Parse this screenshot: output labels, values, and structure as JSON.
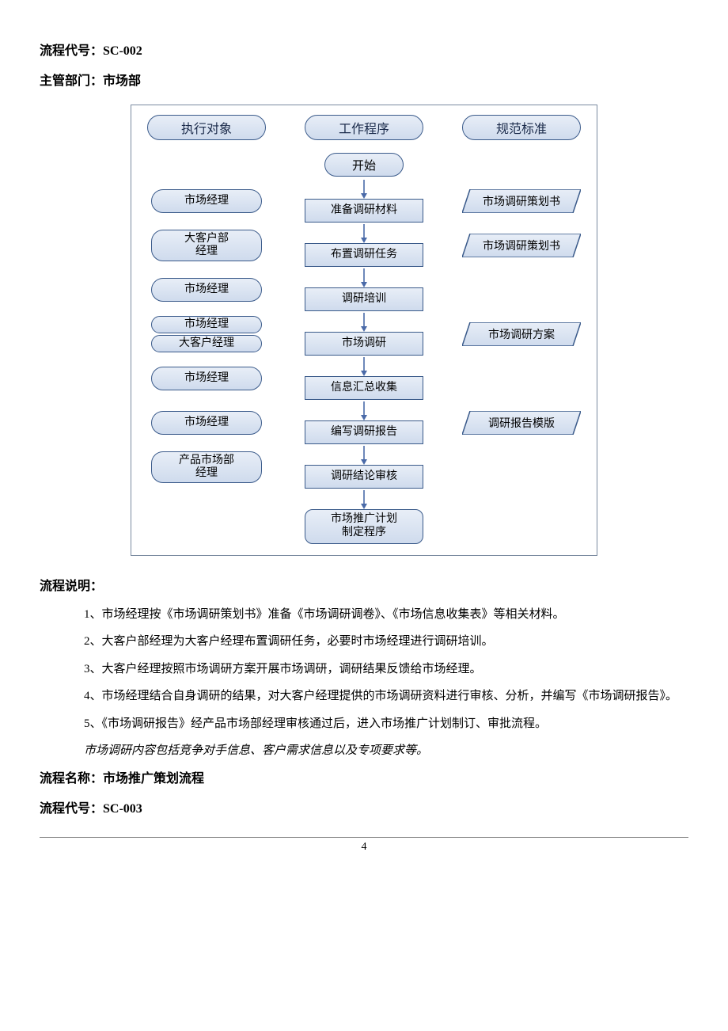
{
  "header": {
    "code_label": "流程代号：",
    "code_value": "SC-002",
    "dept_label": "主管部门：",
    "dept_value": "市场部"
  },
  "flowchart": {
    "type": "flowchart",
    "background_color": "#ffffff",
    "border_color": "#7a8aa0",
    "node_stroke": "#3a5a8a",
    "node_fill_top": "#e8eef7",
    "node_fill_bottom": "#cfdbed",
    "arrow_color": "#4a6aa8",
    "font_family": "SimSun",
    "font_size_header": 16,
    "font_size_node": 14,
    "column_headers": [
      "执行对象",
      "工作程序",
      "规范标准"
    ],
    "start_label": "开始",
    "end_label": "市场推广计划\n制定程序",
    "steps": [
      {
        "actors": [
          "市场经理"
        ],
        "process": "准备调研材料",
        "standard": "市场调研策划书"
      },
      {
        "actors": [
          "大客户部\n经理"
        ],
        "process": "布置调研任务",
        "standard": "市场调研策划书"
      },
      {
        "actors": [
          "市场经理"
        ],
        "process": "调研培训",
        "standard": null
      },
      {
        "actors": [
          "市场经理",
          "大客户经理"
        ],
        "process": "市场调研",
        "standard": "市场调研方案"
      },
      {
        "actors": [
          "市场经理"
        ],
        "process": "信息汇总收集",
        "standard": null
      },
      {
        "actors": [
          "市场经理"
        ],
        "process": "编写调研报告",
        "standard": "调研报告模版"
      },
      {
        "actors": [
          "产品市场部\n经理"
        ],
        "process": "调研结论审核",
        "standard": null
      }
    ]
  },
  "description": {
    "heading": "流程说明：",
    "items": [
      "1、市场经理按《市场调研策划书》准备《市场调研调卷》、《市场信息收集表》等相关材料。",
      "2、大客户部经理为大客户经理布置调研任务，必要时市场经理进行调研培训。",
      "3、大客户经理按照市场调研方案开展市场调研，调研结果反馈给市场经理。",
      "4、市场经理结合自身调研的结果，对大客户经理提供的市场调研资料进行审核、分析，并编写《市场调研报告》。",
      "5、《市场调研报告》经产品市场部经理审核通过后，进入市场推广计划制订、审批流程。"
    ],
    "note": "市场调研内容包括竞争对手信息、客户需求信息以及专项要求等。"
  },
  "footer": {
    "name_label": "流程名称：",
    "name_value": "市场推广策划流程",
    "code_label": "流程代号：",
    "code_value": "SC-003"
  },
  "page_number": "4"
}
